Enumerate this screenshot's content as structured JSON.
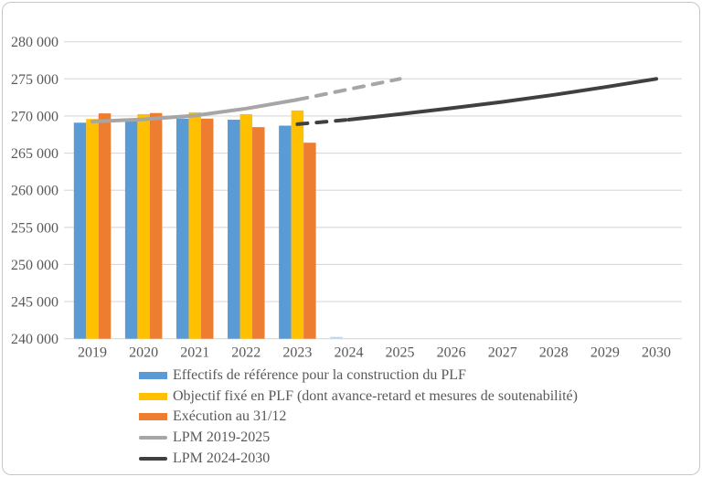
{
  "chart_data": {
    "type": "bar",
    "title": "",
    "xlabel": "",
    "ylabel": "",
    "categories": [
      "2019",
      "2020",
      "2021",
      "2022",
      "2023",
      "2024",
      "2025",
      "2026",
      "2027",
      "2028",
      "2029",
      "2030"
    ],
    "y_axis": {
      "min": 240000,
      "max": 280000,
      "step": 5000,
      "tick_labels": [
        "240 000",
        "245 000",
        "250 000",
        "255 000",
        "260 000",
        "265 000",
        "270 000",
        "275 000",
        "280 000"
      ]
    },
    "grid": "horizontal",
    "legend_position": "bottom-left",
    "colors": {
      "blue": "#5B9BD5",
      "blue_light": "#BDD7EE",
      "yellow": "#FFC000",
      "orange": "#ED7D31",
      "gray_line": "#A6A6A6",
      "dark_line": "#404040",
      "gridline": "#D9D9D9",
      "text": "#595959"
    },
    "bar_series": [
      {
        "name": "Effectifs de référence pour la construction du PLF",
        "color": "#5B9BD5",
        "values": [
          269100,
          269400,
          269650,
          269500,
          268700,
          240250,
          null,
          null,
          null,
          null,
          null,
          null
        ],
        "colors_override": {
          "5": "#BDD7EE"
        }
      },
      {
        "name": "Objectif fixé en PLF (dont avance-retard et mesures de soutenabilité)",
        "color": "#FFC000",
        "values": [
          269600,
          270250,
          270500,
          270250,
          270750,
          null,
          null,
          null,
          null,
          null,
          null,
          null
        ]
      },
      {
        "name": "Exécution au 31/12",
        "color": "#ED7D31",
        "values": [
          270350,
          270400,
          269650,
          268500,
          266400,
          null,
          null,
          null,
          null,
          null,
          null,
          null
        ]
      }
    ],
    "line_series": [
      {
        "name": "LPM 2019-2025",
        "color": "#A6A6A6",
        "width": 4,
        "solid": {
          "x": [
            2019,
            2020,
            2021,
            2022,
            2023
          ],
          "y": [
            269250,
            269550,
            270050,
            271000,
            272200
          ]
        },
        "dashed": {
          "x": [
            2023,
            2024,
            2025
          ],
          "y": [
            272200,
            273600,
            275000
          ]
        }
      },
      {
        "name": "LPM 2024-2030",
        "color": "#404040",
        "width": 4,
        "dashed": {
          "x": [
            2023,
            2024
          ],
          "y": [
            268900,
            269500
          ]
        },
        "solid": {
          "x": [
            2024,
            2025,
            2026,
            2027,
            2028,
            2029,
            2030
          ],
          "y": [
            269500,
            270250,
            271050,
            271900,
            272850,
            273900,
            275000
          ]
        }
      }
    ]
  }
}
